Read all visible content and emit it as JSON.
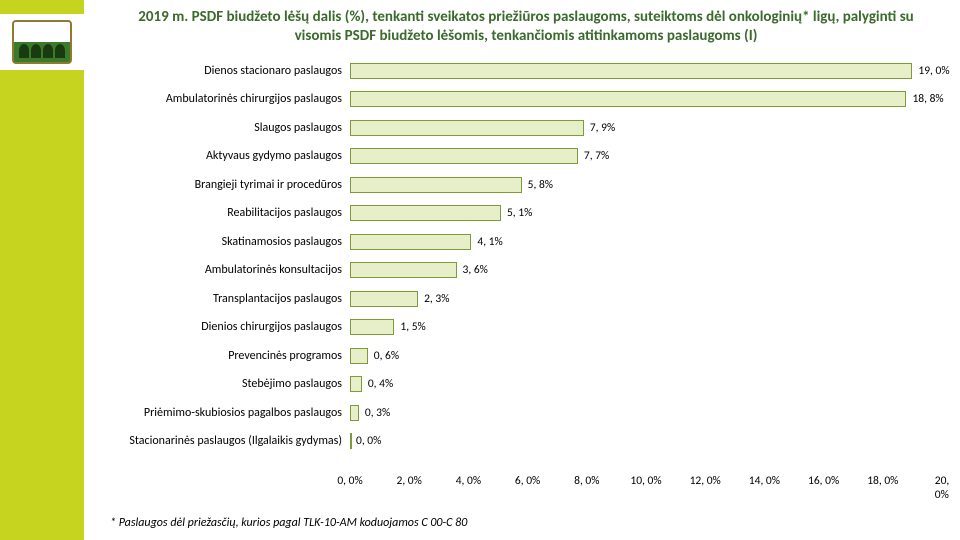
{
  "title": "2019 m. PSDF biudžeto lėšų dalis (%), tenkanti sveikatos priežiūros paslaugoms, suteiktoms dėl onkologinių* ligų, palyginti su visomis PSDF biudžeto lėšomis, tenkančiomis atitinkamoms paslaugoms (I)",
  "title_color": "#3a6a2c",
  "title_fontsize": 15,
  "chart": {
    "type": "bar-horizontal",
    "xmin": 0,
    "xmax": 20,
    "xtick_step": 2,
    "xtick_labels": [
      "0, 0%",
      "2, 0%",
      "4, 0%",
      "6, 0%",
      "8, 0%",
      "10, 0%",
      "12, 0%",
      "14, 0%",
      "16, 0%",
      "18, 0%",
      "20, 0%"
    ],
    "bar_fill": "#e6efc8",
    "bar_border": "#7f9a3a",
    "background": "#ffffff",
    "label_fontsize": 12,
    "dlabel_fontsize": 11.5,
    "rows": [
      {
        "label": "Dienos stacionaro paslaugos",
        "value": 19.0,
        "dlabel": "19, 0%"
      },
      {
        "label": "Ambulatorinės chirurgijos paslaugos",
        "value": 18.8,
        "dlabel": "18, 8%"
      },
      {
        "label": "Slaugos paslaugos",
        "value": 7.9,
        "dlabel": "7, 9%"
      },
      {
        "label": "Aktyvaus gydymo paslaugos",
        "value": 7.7,
        "dlabel": "7, 7%"
      },
      {
        "label": "Brangieji tyrimai ir procedūros",
        "value": 5.8,
        "dlabel": "5, 8%"
      },
      {
        "label": "Reabilitacijos paslaugos",
        "value": 5.1,
        "dlabel": "5, 1%"
      },
      {
        "label": "Skatinamosios paslaugos",
        "value": 4.1,
        "dlabel": "4, 1%"
      },
      {
        "label": "Ambulatorinės konsultacijos",
        "value": 3.6,
        "dlabel": "3, 6%"
      },
      {
        "label": "Transplantacijos paslaugos",
        "value": 2.3,
        "dlabel": "2, 3%"
      },
      {
        "label": "Dienios chirurgijos paslaugos",
        "value": 1.5,
        "dlabel": "1, 5%"
      },
      {
        "label": "Prevencinės programos",
        "value": 0.6,
        "dlabel": "0, 6%"
      },
      {
        "label": "Stebėjimo paslaugos",
        "value": 0.4,
        "dlabel": "0, 4%"
      },
      {
        "label": "Priėmimo-skubiosios pagalbos paslaugos",
        "value": 0.3,
        "dlabel": "0, 3%"
      },
      {
        "label": "Stacionarinės paslaugos (Ilgalaikis gydymas)",
        "value": 0.0,
        "dlabel": "0, 0%"
      }
    ]
  },
  "footnote": "* Paslaugos dėl priežasčių, kurios pagal TLK-10-AM koduojamos C 00-C 80"
}
